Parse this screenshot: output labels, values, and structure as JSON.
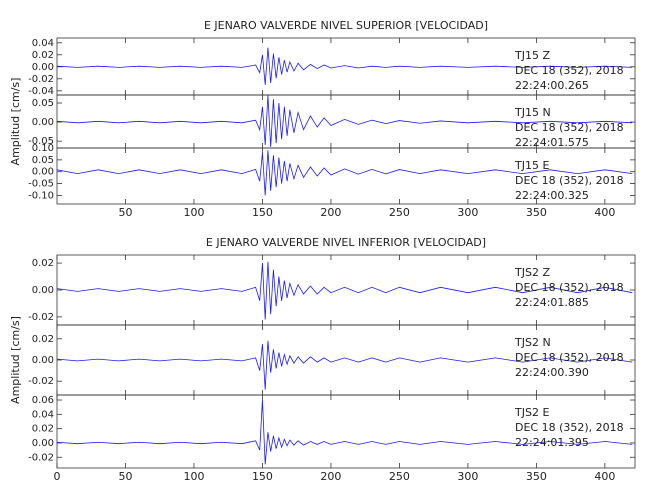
{
  "chart_data": [
    {
      "type": "line",
      "title": "E JENARO VALVERDE NIVEL SUPERIOR [VELOCIDAD]",
      "color": "#1a1aff",
      "annotation": [
        "TJ15   Z",
        "DEC 18 (352), 2018",
        "22:24:00.265"
      ],
      "xlim": [
        0,
        422
      ],
      "ylim": [
        -0.047,
        0.048
      ],
      "yticks": [
        -0.04,
        -0.02,
        {
          "value": 0,
          "label": "0.00"
        },
        0.02,
        0.04
      ],
      "x": [
        0,
        15,
        30,
        45,
        60,
        75,
        90,
        105,
        120,
        135,
        145,
        148,
        150,
        152,
        154,
        156,
        158,
        160,
        162,
        164,
        166,
        168,
        170,
        173,
        176,
        180,
        185,
        190,
        195,
        200,
        210,
        220,
        230,
        240,
        250,
        265,
        280,
        300,
        320,
        340,
        360,
        380,
        400,
        420
      ],
      "values": [
        0.001,
        -0.001,
        0.001,
        -0.001,
        0.001,
        -0.001,
        0.001,
        -0.001,
        0.001,
        -0.001,
        0.003,
        -0.01,
        0.02,
        -0.03,
        0.032,
        -0.027,
        0.022,
        -0.019,
        0.016,
        -0.013,
        0.011,
        -0.009,
        0.008,
        -0.007,
        0.006,
        -0.005,
        0.004,
        -0.003,
        0.003,
        -0.002,
        0.002,
        -0.002,
        0.001,
        -0.001,
        0.001,
        -0.001,
        0.001,
        -0.001,
        0.001,
        -0.001,
        0.001,
        -0.001,
        0.001,
        -0.001
      ]
    },
    {
      "type": "line",
      "y_label": "Amplitud [cm/s]",
      "color": "#1a1aff",
      "annotation": [
        "TJ15   N",
        "DEC 18 (352), 2018",
        "22:24:01.575"
      ],
      "xlim": [
        0,
        422
      ],
      "ylim": [
        -0.068,
        0.071
      ],
      "yticks": [
        -0.05,
        {
          "value": 0,
          "label": "0.00"
        },
        0.05
      ],
      "x": [
        0,
        15,
        30,
        45,
        60,
        75,
        90,
        105,
        120,
        135,
        145,
        148,
        150,
        152,
        154,
        156,
        158,
        160,
        162,
        164,
        166,
        168,
        170,
        173,
        176,
        180,
        185,
        190,
        195,
        200,
        210,
        220,
        230,
        240,
        250,
        265,
        280,
        300,
        320,
        340,
        360,
        380,
        400,
        420
      ],
      "values": [
        0.002,
        -0.002,
        0.002,
        -0.002,
        0.002,
        -0.002,
        0.002,
        -0.002,
        0.002,
        -0.002,
        0.005,
        -0.02,
        0.04,
        -0.06,
        0.07,
        -0.065,
        0.06,
        -0.055,
        0.05,
        -0.045,
        0.04,
        -0.036,
        0.032,
        -0.028,
        0.025,
        -0.02,
        0.016,
        -0.013,
        0.011,
        -0.009,
        0.007,
        -0.006,
        0.005,
        -0.004,
        0.004,
        -0.003,
        0.003,
        -0.002,
        0.002,
        -0.002,
        0.002,
        -0.002,
        0.002,
        -0.002
      ]
    },
    {
      "type": "line",
      "color": "#1a1aff",
      "annotation": [
        "TJ15   E",
        "DEC 18 (352), 2018",
        "22:24:00.325"
      ],
      "xlim": [
        0,
        422
      ],
      "ylim": [
        -0.136,
        0.1
      ],
      "yticks": [
        {
          "value": -0.1,
          "label": "-0.10"
        },
        -0.05,
        {
          "value": 0,
          "label": "0.00"
        },
        0.05,
        {
          "value": 0.1,
          "label": "0.10"
        }
      ],
      "xticks": [
        50,
        100,
        150,
        200,
        250,
        300,
        350,
        400
      ],
      "x": [
        0,
        15,
        30,
        45,
        60,
        75,
        90,
        105,
        120,
        135,
        145,
        148,
        150,
        152,
        154,
        156,
        158,
        160,
        162,
        164,
        166,
        168,
        170,
        173,
        176,
        180,
        185,
        190,
        195,
        200,
        210,
        220,
        230,
        240,
        250,
        265,
        280,
        300,
        320,
        340,
        360,
        380,
        400,
        420
      ],
      "values": [
        0.008,
        -0.008,
        0.008,
        -0.008,
        0.008,
        -0.008,
        0.008,
        -0.008,
        0.008,
        -0.008,
        0.01,
        -0.04,
        0.08,
        -0.1,
        0.09,
        -0.08,
        0.07,
        -0.065,
        0.06,
        -0.05,
        0.045,
        -0.04,
        0.035,
        -0.03,
        0.027,
        -0.024,
        0.02,
        -0.018,
        0.016,
        -0.014,
        0.012,
        -0.01,
        0.01,
        -0.009,
        0.009,
        -0.008,
        0.008,
        -0.008,
        0.008,
        -0.008,
        0.008,
        -0.008,
        0.008,
        -0.008
      ]
    },
    {
      "type": "line",
      "title": "E JENARO VALVERDE NIVEL INFERIOR [VELOCIDAD]",
      "color": "#1a1aff",
      "annotation": [
        "TJS2   Z",
        "DEC 18 (352), 2018",
        "22:24:01.885"
      ],
      "xlim": [
        0,
        422
      ],
      "ylim": [
        -0.026,
        0.026
      ],
      "yticks": [
        -0.02,
        {
          "value": 0,
          "label": "0.00"
        },
        0.02
      ],
      "x": [
        0,
        15,
        30,
        45,
        60,
        75,
        90,
        105,
        120,
        135,
        145,
        148,
        150,
        152,
        154,
        156,
        158,
        160,
        162,
        164,
        166,
        168,
        170,
        173,
        176,
        180,
        185,
        190,
        195,
        200,
        210,
        220,
        230,
        240,
        250,
        265,
        280,
        300,
        320,
        340,
        360,
        380,
        400,
        420
      ],
      "values": [
        0.001,
        -0.001,
        0.001,
        -0.001,
        0.001,
        -0.001,
        0.001,
        -0.001,
        0.001,
        -0.001,
        0.002,
        -0.008,
        0.02,
        -0.022,
        0.021,
        -0.018,
        0.015,
        -0.012,
        0.01,
        -0.008,
        0.007,
        -0.006,
        0.005,
        -0.004,
        0.004,
        -0.003,
        0.003,
        -0.003,
        0.002,
        -0.002,
        0.002,
        -0.002,
        0.002,
        -0.002,
        0.002,
        -0.002,
        0.002,
        -0.002,
        0.002,
        -0.002,
        0.002,
        -0.002,
        0.002,
        -0.002
      ]
    },
    {
      "type": "line",
      "y_label": "Amplitud [cm/s]",
      "color": "#1a1aff",
      "annotation": [
        "TJS2   N",
        "DEC 18 (352), 2018",
        "22:24:00.390"
      ],
      "xlim": [
        0,
        422
      ],
      "ylim": [
        -0.033,
        0.033
      ],
      "yticks": [
        -0.02,
        {
          "value": 0,
          "label": "0.00"
        },
        0.02
      ],
      "x": [
        0,
        15,
        30,
        45,
        60,
        75,
        90,
        105,
        120,
        135,
        145,
        148,
        150,
        152,
        154,
        156,
        158,
        160,
        162,
        164,
        166,
        168,
        170,
        173,
        176,
        180,
        185,
        190,
        195,
        200,
        210,
        220,
        230,
        240,
        250,
        265,
        280,
        300,
        320,
        340,
        360,
        380,
        400,
        420
      ],
      "values": [
        0.0008,
        -0.0008,
        0.0008,
        -0.0008,
        0.0008,
        -0.0008,
        0.0008,
        -0.0008,
        0.0008,
        -0.0008,
        0.002,
        -0.01,
        0.015,
        -0.028,
        0.018,
        -0.012,
        0.01,
        -0.008,
        0.007,
        -0.006,
        0.005,
        -0.004,
        0.004,
        -0.003,
        0.003,
        -0.003,
        0.003,
        -0.002,
        0.002,
        -0.002,
        0.002,
        -0.002,
        0.002,
        -0.002,
        0.002,
        -0.002,
        0.002,
        -0.002,
        0.002,
        -0.002,
        0.002,
        -0.002,
        0.002,
        -0.002
      ]
    },
    {
      "type": "line",
      "color": "#1a1aff",
      "annotation": [
        "TJS2   E",
        "DEC 18 (352), 2018",
        "22:24:01.395"
      ],
      "xlim": [
        0,
        422
      ],
      "ylim": [
        -0.035,
        0.067
      ],
      "yticks": [
        -0.02,
        {
          "value": 0,
          "label": "0.00"
        },
        0.02,
        0.04,
        0.06
      ],
      "xticks": [
        0,
        50,
        100,
        150,
        200,
        250,
        300,
        350,
        400
      ],
      "x": [
        0,
        15,
        30,
        45,
        60,
        75,
        90,
        105,
        120,
        135,
        145,
        148,
        150,
        152,
        154,
        156,
        158,
        160,
        162,
        164,
        166,
        168,
        170,
        173,
        176,
        180,
        185,
        190,
        195,
        200,
        210,
        220,
        230,
        240,
        250,
        265,
        280,
        300,
        320,
        340,
        360,
        380,
        400,
        420
      ],
      "values": [
        0.001,
        -0.001,
        0.001,
        -0.001,
        0.001,
        -0.001,
        0.001,
        -0.001,
        0.001,
        -0.001,
        0.003,
        -0.01,
        0.06,
        -0.03,
        0.015,
        -0.012,
        0.01,
        -0.008,
        0.007,
        -0.006,
        0.005,
        -0.004,
        0.004,
        -0.003,
        0.003,
        -0.003,
        0.002,
        -0.002,
        0.002,
        -0.002,
        0.002,
        -0.002,
        0.002,
        -0.002,
        0.002,
        -0.002,
        0.002,
        -0.002,
        0.002,
        -0.002,
        0.002,
        -0.002,
        0.002,
        -0.002
      ]
    }
  ]
}
